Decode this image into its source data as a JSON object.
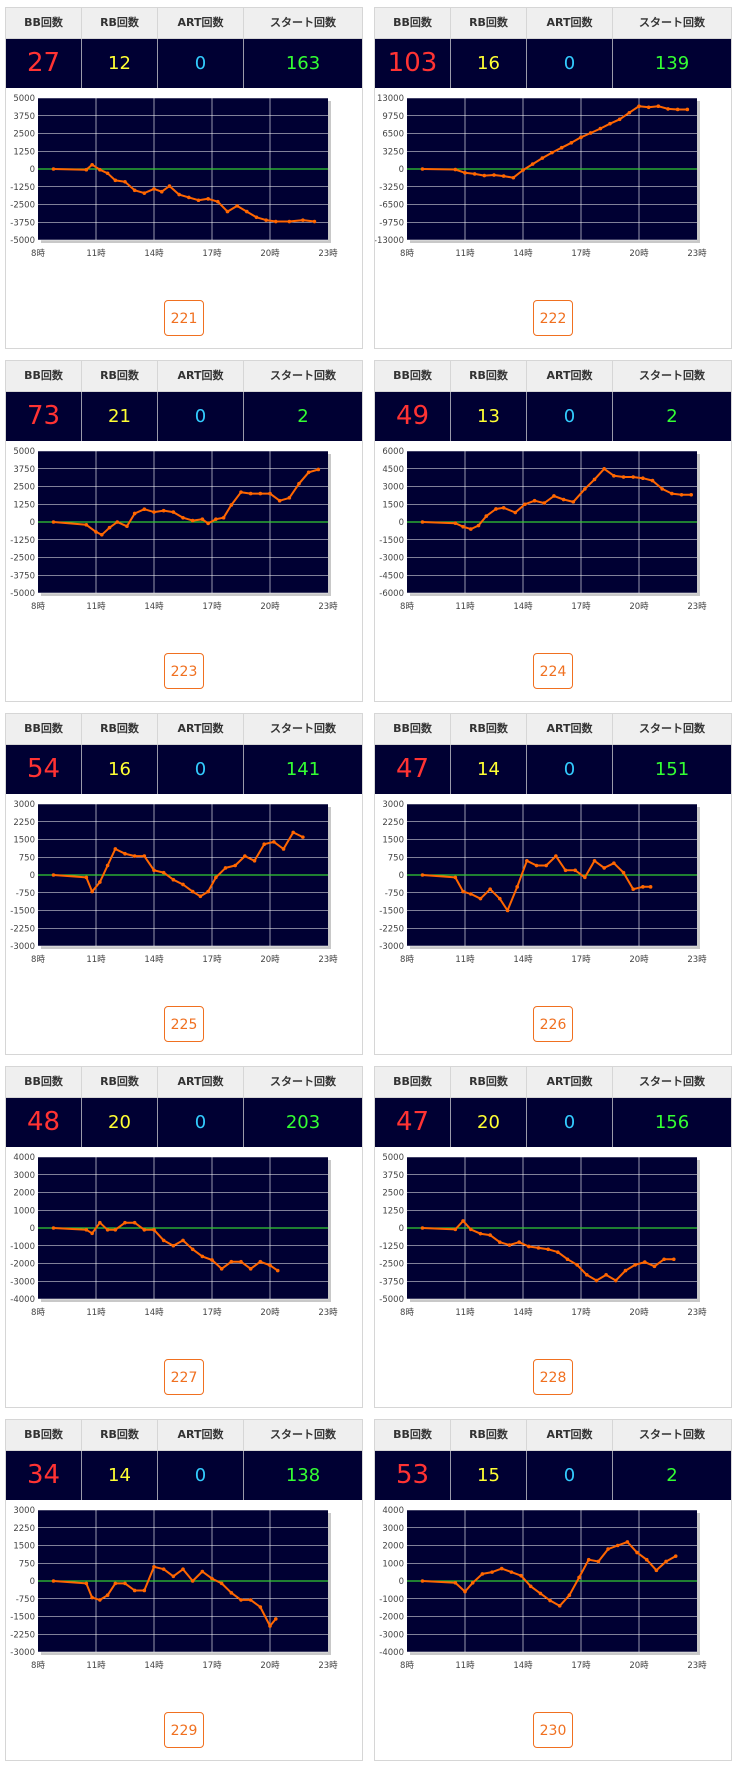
{
  "headers": {
    "bb": "BB回数",
    "rb": "RB回数",
    "art": "ART回数",
    "start": "スタート回数"
  },
  "colors": {
    "bb": "#ff3333",
    "rb": "#ffff33",
    "art": "#33ccff",
    "start": "#33ff33",
    "plot_bg": "#000033",
    "line": "#ff6600",
    "zero_line": "#33cc33"
  },
  "machines": [
    {
      "number": "221",
      "bb": "27",
      "rb": "12",
      "art": "0",
      "start": "163",
      "chart_data": {
        "type": "line",
        "x_ticks": [
          "8時",
          "11時",
          "14時",
          "17時",
          "20時",
          "23時"
        ],
        "xlim": [
          8,
          23
        ],
        "ylim": [
          -5000,
          5000
        ],
        "y_ticks": [
          5000,
          3750,
          2500,
          1250,
          0,
          -1250,
          -2500,
          -3750,
          -5000
        ],
        "x": [
          8.8,
          10.5,
          10.8,
          11.2,
          11.6,
          12.0,
          12.5,
          13.0,
          13.5,
          14.0,
          14.4,
          14.8,
          15.3,
          15.8,
          16.3,
          16.8,
          17.3,
          17.8,
          18.3,
          18.8,
          19.3,
          19.8,
          20.3,
          21.0,
          21.7,
          22.3
        ],
        "y": [
          0,
          -50,
          300,
          -50,
          -300,
          -800,
          -900,
          -1500,
          -1700,
          -1400,
          -1600,
          -1200,
          -1800,
          -2000,
          -2200,
          -2100,
          -2300,
          -3000,
          -2600,
          -3000,
          -3400,
          -3600,
          -3700,
          -3700,
          -3600,
          -3700
        ]
      }
    },
    {
      "number": "222",
      "bb": "103",
      "rb": "16",
      "art": "0",
      "start": "139",
      "chart_data": {
        "type": "line",
        "x_ticks": [
          "8時",
          "11時",
          "14時",
          "17時",
          "20時",
          "23時"
        ],
        "xlim": [
          8,
          23
        ],
        "ylim": [
          -13000,
          13000
        ],
        "y_ticks": [
          13000,
          9750,
          6500,
          3250,
          0,
          -3250,
          -6500,
          -9750,
          -13000
        ],
        "x": [
          8.8,
          10.5,
          11.0,
          11.5,
          12.0,
          12.5,
          13.0,
          13.5,
          14.0,
          14.5,
          15.0,
          15.5,
          16.0,
          16.5,
          17.0,
          17.5,
          18.0,
          18.5,
          19.0,
          19.5,
          20.0,
          20.5,
          21.0,
          21.5,
          22.0,
          22.5
        ],
        "y": [
          0,
          -100,
          -700,
          -900,
          -1200,
          -1100,
          -1300,
          -1600,
          -200,
          900,
          2000,
          3000,
          3900,
          4800,
          5800,
          6600,
          7400,
          8300,
          9100,
          10300,
          11500,
          11300,
          11500,
          11000,
          10900,
          10900
        ]
      }
    },
    {
      "number": "223",
      "bb": "73",
      "rb": "21",
      "art": "0",
      "start": "2",
      "chart_data": {
        "type": "line",
        "x_ticks": [
          "8時",
          "11時",
          "14時",
          "17時",
          "20時",
          "23時"
        ],
        "xlim": [
          8,
          23
        ],
        "ylim": [
          -5000,
          5000
        ],
        "y_ticks": [
          5000,
          3750,
          2500,
          1250,
          0,
          -1250,
          -2500,
          -3750,
          -5000
        ],
        "x": [
          8.8,
          10.5,
          11.0,
          11.3,
          11.7,
          12.1,
          12.6,
          13.0,
          13.5,
          14.0,
          14.5,
          15.0,
          15.5,
          16.0,
          16.5,
          16.8,
          17.2,
          17.6,
          18.0,
          18.5,
          19.0,
          19.5,
          20.0,
          20.5,
          21.0,
          21.5,
          22.0,
          22.5
        ],
        "y": [
          0,
          -200,
          -700,
          -900,
          -400,
          0,
          -300,
          600,
          900,
          700,
          800,
          700,
          300,
          100,
          200,
          -100,
          200,
          300,
          1200,
          2100,
          2000,
          2000,
          2000,
          1500,
          1700,
          2700,
          3500,
          3700
        ]
      }
    },
    {
      "number": "224",
      "bb": "49",
      "rb": "13",
      "art": "0",
      "start": "2",
      "chart_data": {
        "type": "line",
        "x_ticks": [
          "8時",
          "11時",
          "14時",
          "17時",
          "20時",
          "23時"
        ],
        "xlim": [
          8,
          23
        ],
        "ylim": [
          -6000,
          6000
        ],
        "y_ticks": [
          6000,
          4500,
          3000,
          1500,
          0,
          -1500,
          -3000,
          -4500,
          -6000
        ],
        "x": [
          8.8,
          10.5,
          10.9,
          11.3,
          11.7,
          12.1,
          12.6,
          13.0,
          13.6,
          14.1,
          14.6,
          15.1,
          15.6,
          16.1,
          16.6,
          17.2,
          17.7,
          18.2,
          18.7,
          19.2,
          19.7,
          20.2,
          20.7,
          21.2,
          21.7,
          22.2,
          22.7
        ],
        "y": [
          0,
          -100,
          -400,
          -600,
          -300,
          500,
          1100,
          1200,
          800,
          1500,
          1800,
          1600,
          2200,
          1900,
          1700,
          2800,
          3600,
          4500,
          3900,
          3800,
          3800,
          3700,
          3500,
          2800,
          2400,
          2300,
          2300
        ]
      }
    },
    {
      "number": "225",
      "bb": "54",
      "rb": "16",
      "art": "0",
      "start": "141",
      "chart_data": {
        "type": "line",
        "x_ticks": [
          "8時",
          "11時",
          "14時",
          "17時",
          "20時",
          "23時"
        ],
        "xlim": [
          8,
          23
        ],
        "ylim": [
          -3000,
          3000
        ],
        "y_ticks": [
          3000,
          2250,
          1500,
          750,
          0,
          -750,
          -1500,
          -2250,
          -3000
        ],
        "x": [
          8.8,
          10.5,
          10.8,
          11.2,
          11.6,
          12.0,
          12.5,
          13.0,
          13.5,
          14.0,
          14.5,
          15.0,
          15.5,
          16.0,
          16.4,
          16.8,
          17.2,
          17.7,
          18.2,
          18.7,
          19.2,
          19.7,
          20.2,
          20.7,
          21.2,
          21.7
        ],
        "y": [
          0,
          -100,
          -700,
          -300,
          400,
          1100,
          900,
          800,
          800,
          200,
          100,
          -200,
          -400,
          -700,
          -900,
          -700,
          -100,
          300,
          400,
          800,
          600,
          1300,
          1400,
          1100,
          1800,
          1600
        ]
      }
    },
    {
      "number": "226",
      "bb": "47",
      "rb": "14",
      "art": "0",
      "start": "151",
      "chart_data": {
        "type": "line",
        "x_ticks": [
          "8時",
          "11時",
          "14時",
          "17時",
          "20時",
          "23時"
        ],
        "xlim": [
          8,
          23
        ],
        "ylim": [
          -3000,
          3000
        ],
        "y_ticks": [
          3000,
          2250,
          1500,
          750,
          0,
          -750,
          -1500,
          -2250,
          -3000
        ],
        "x": [
          8.8,
          10.5,
          10.9,
          11.3,
          11.8,
          12.3,
          12.8,
          13.2,
          13.7,
          14.2,
          14.7,
          15.2,
          15.7,
          16.2,
          16.7,
          17.2,
          17.7,
          18.2,
          18.7,
          19.2,
          19.7,
          20.2,
          20.6
        ],
        "y": [
          0,
          -100,
          -700,
          -800,
          -1000,
          -600,
          -1000,
          -1500,
          -500,
          600,
          400,
          400,
          800,
          200,
          200,
          -100,
          600,
          300,
          500,
          100,
          -600,
          -500,
          -500
        ]
      }
    },
    {
      "number": "227",
      "bb": "48",
      "rb": "20",
      "art": "0",
      "start": "203",
      "chart_data": {
        "type": "line",
        "x_ticks": [
          "8時",
          "11時",
          "14時",
          "17時",
          "20時",
          "23時"
        ],
        "xlim": [
          8,
          23
        ],
        "ylim": [
          -4000,
          4000
        ],
        "y_ticks": [
          4000,
          3000,
          2000,
          1000,
          0,
          -1000,
          -2000,
          -3000,
          -4000
        ],
        "x": [
          8.8,
          10.5,
          10.8,
          11.2,
          11.6,
          12.0,
          12.5,
          13.0,
          13.5,
          14.0,
          14.5,
          15.0,
          15.5,
          16.0,
          16.5,
          17.0,
          17.5,
          18.0,
          18.5,
          19.0,
          19.5,
          20.0,
          20.4
        ],
        "y": [
          0,
          -100,
          -300,
          300,
          -100,
          -100,
          300,
          300,
          -100,
          -100,
          -700,
          -1000,
          -700,
          -1200,
          -1600,
          -1800,
          -2300,
          -1900,
          -1900,
          -2300,
          -1900,
          -2100,
          -2400
        ]
      }
    },
    {
      "number": "228",
      "bb": "47",
      "rb": "20",
      "art": "0",
      "start": "156",
      "chart_data": {
        "type": "line",
        "x_ticks": [
          "8時",
          "11時",
          "14時",
          "17時",
          "20時",
          "23時"
        ],
        "xlim": [
          8,
          23
        ],
        "ylim": [
          -5000,
          5000
        ],
        "y_ticks": [
          5000,
          3750,
          2500,
          1250,
          0,
          -1250,
          -2500,
          -3750,
          -5000
        ],
        "x": [
          8.8,
          10.5,
          10.9,
          11.3,
          11.8,
          12.3,
          12.8,
          13.3,
          13.8,
          14.3,
          14.8,
          15.3,
          15.8,
          16.3,
          16.8,
          17.3,
          17.8,
          18.3,
          18.8,
          19.3,
          19.8,
          20.3,
          20.8,
          21.3,
          21.8
        ],
        "y": [
          0,
          -100,
          500,
          -100,
          -400,
          -500,
          -1000,
          -1200,
          -1000,
          -1300,
          -1400,
          -1500,
          -1700,
          -2200,
          -2600,
          -3300,
          -3700,
          -3300,
          -3700,
          -3000,
          -2600,
          -2400,
          -2700,
          -2200,
          -2200
        ]
      }
    },
    {
      "number": "229",
      "bb": "34",
      "rb": "14",
      "art": "0",
      "start": "138",
      "chart_data": {
        "type": "line",
        "x_ticks": [
          "8時",
          "11時",
          "14時",
          "17時",
          "20時",
          "23時"
        ],
        "xlim": [
          8,
          23
        ],
        "ylim": [
          -3000,
          3000
        ],
        "y_ticks": [
          3000,
          2250,
          1500,
          750,
          0,
          -750,
          -1500,
          -2250,
          -3000
        ],
        "x": [
          8.8,
          10.5,
          10.8,
          11.2,
          11.6,
          12.0,
          12.5,
          13.0,
          13.5,
          14.0,
          14.5,
          15.0,
          15.5,
          16.0,
          16.5,
          17.0,
          17.5,
          18.0,
          18.5,
          19.0,
          19.5,
          20.0,
          20.3
        ],
        "y": [
          0,
          -100,
          -700,
          -800,
          -600,
          -100,
          -100,
          -400,
          -400,
          600,
          500,
          200,
          500,
          0,
          400,
          100,
          -100,
          -500,
          -800,
          -800,
          -1100,
          -1900,
          -1600
        ]
      }
    },
    {
      "number": "230",
      "bb": "53",
      "rb": "15",
      "art": "0",
      "start": "2",
      "chart_data": {
        "type": "line",
        "x_ticks": [
          "8時",
          "11時",
          "14時",
          "17時",
          "20時",
          "23時"
        ],
        "xlim": [
          8,
          23
        ],
        "ylim": [
          -4000,
          4000
        ],
        "y_ticks": [
          4000,
          3000,
          2000,
          1000,
          0,
          -1000,
          -2000,
          -3000,
          -4000
        ],
        "x": [
          8.8,
          10.5,
          11.0,
          11.4,
          11.9,
          12.4,
          12.9,
          13.4,
          13.9,
          14.4,
          14.9,
          15.4,
          15.9,
          16.4,
          16.9,
          17.4,
          17.9,
          18.4,
          18.9,
          19.4,
          19.9,
          20.4,
          20.9,
          21.4,
          21.9
        ],
        "y": [
          0,
          -100,
          -600,
          -100,
          400,
          500,
          700,
          500,
          300,
          -300,
          -700,
          -1100,
          -1400,
          -800,
          200,
          1200,
          1100,
          1800,
          2000,
          2200,
          1600,
          1200,
          600,
          1100,
          1400
        ]
      }
    }
  ]
}
